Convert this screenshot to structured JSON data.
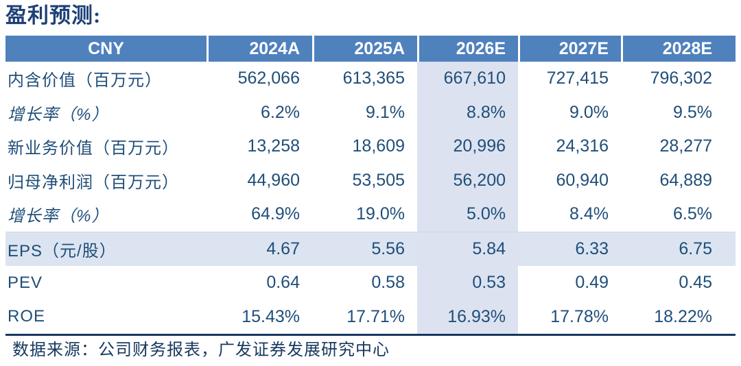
{
  "page": {
    "title": "盈利预测:",
    "source_note": "数据来源：公司财务报表，广发证券发展研究中心"
  },
  "table": {
    "columns": [
      "CNY",
      "2024A",
      "2025A",
      "2026E",
      "2027E",
      "2028E"
    ],
    "highlighted_column": "2026E",
    "highlighted_row": "EPS（元/股）",
    "rows": [
      {
        "label": "内含价值（百万元）",
        "values": [
          "562,066",
          "613,365",
          "667,610",
          "727,415",
          "796,302"
        ]
      },
      {
        "label": "增长率（%）",
        "values": [
          "6.2%",
          "9.1%",
          "8.8%",
          "9.0%",
          "9.5%"
        ]
      },
      {
        "label": "新业务价值（百万元）",
        "values": [
          "13,258",
          "18,609",
          "20,996",
          "24,316",
          "28,277"
        ]
      },
      {
        "label": "归母净利润（百万元）",
        "values": [
          "44,960",
          "53,505",
          "56,200",
          "60,940",
          "64,889"
        ]
      },
      {
        "label": "增长率（%）",
        "values": [
          "64.9%",
          "19.0%",
          "5.0%",
          "8.4%",
          "6.5%"
        ]
      },
      {
        "label": "EPS（元/股）",
        "values": [
          "4.67",
          "5.56",
          "5.84",
          "6.33",
          "6.75"
        ]
      },
      {
        "label": "PEV",
        "values": [
          "0.64",
          "0.58",
          "0.53",
          "0.49",
          "0.45"
        ]
      },
      {
        "label": "ROE",
        "values": [
          "15.43%",
          "17.71%",
          "16.93%",
          "17.78%",
          "18.22%"
        ]
      }
    ]
  },
  "colors": {
    "header_bg": "#4F81BD",
    "header_text": "#FFFFFF",
    "body_text": "#1F4E79",
    "title_text": "#1D4077",
    "column_highlight": "#DCE2F0",
    "row_highlight": "#DBE4F0",
    "table_bottom_border": "#17375E"
  }
}
